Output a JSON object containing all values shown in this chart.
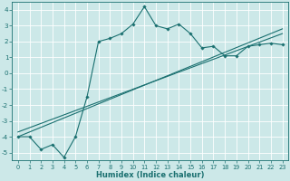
{
  "xlabel": "Humidex (Indice chaleur)",
  "ylabel": "",
  "background_color": "#cce8e8",
  "grid_color": "#ffffff",
  "line_color": "#1a7070",
  "xlim": [
    -0.5,
    23.5
  ],
  "ylim": [
    -5.5,
    4.5
  ],
  "yticks": [
    -5,
    -4,
    -3,
    -2,
    -1,
    0,
    1,
    2,
    3,
    4
  ],
  "xticks": [
    0,
    1,
    2,
    3,
    4,
    5,
    6,
    7,
    8,
    9,
    10,
    11,
    12,
    13,
    14,
    15,
    16,
    17,
    18,
    19,
    20,
    21,
    22,
    23
  ],
  "curve1_x": [
    0,
    1,
    2,
    3,
    4,
    5,
    6,
    7,
    8,
    9,
    10,
    11,
    12,
    13,
    14,
    15,
    16,
    17,
    18,
    19,
    20,
    21,
    22,
    23
  ],
  "curve1_y": [
    -4.0,
    -4.0,
    -4.8,
    -4.5,
    -5.3,
    -4.0,
    -1.5,
    2.0,
    2.2,
    2.5,
    3.1,
    4.2,
    3.0,
    2.8,
    3.1,
    2.5,
    1.6,
    1.7,
    1.1,
    1.1,
    1.7,
    1.8,
    1.9,
    1.8
  ],
  "curve2_x": [
    0,
    23
  ],
  "curve2_y": [
    -4.0,
    2.8
  ],
  "curve3_x": [
    0,
    23
  ],
  "curve3_y": [
    -3.7,
    2.5
  ]
}
